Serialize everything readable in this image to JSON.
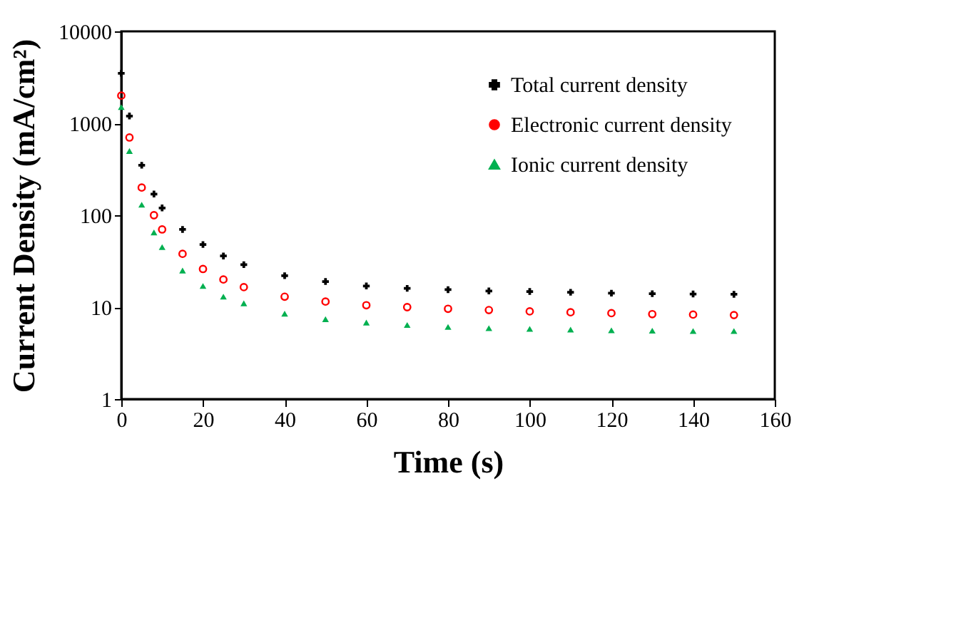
{
  "chart_data": {
    "type": "scatter",
    "xlabel": "Time (s)",
    "ylabel": "Current Density (mA/cm²)",
    "x": [
      0,
      2,
      5,
      8,
      10,
      15,
      20,
      25,
      30,
      40,
      50,
      60,
      70,
      80,
      90,
      100,
      110,
      120,
      130,
      140,
      150
    ],
    "series": [
      {
        "name": "Total current density",
        "color": "#000000",
        "marker": "cross",
        "values": [
          3500,
          1200,
          350,
          170,
          120,
          70,
          48,
          36,
          29,
          22,
          19,
          17,
          16,
          15.5,
          15,
          14.8,
          14.5,
          14.2,
          14,
          13.9,
          13.8
        ]
      },
      {
        "name": "Electronic current density",
        "color": "#ff0000",
        "marker": "circle",
        "values": [
          2000,
          700,
          200,
          100,
          70,
          38,
          26,
          20,
          16.5,
          13,
          11.5,
          10.5,
          10,
          9.6,
          9.3,
          9,
          8.8,
          8.6,
          8.4,
          8.3,
          8.2
        ]
      },
      {
        "name": "Ionic current density",
        "color": "#00b050",
        "marker": "triangle",
        "values": [
          1500,
          500,
          130,
          65,
          45,
          25,
          17,
          13,
          11,
          8.5,
          7.4,
          6.8,
          6.4,
          6.1,
          5.9,
          5.8,
          5.7,
          5.6,
          5.55,
          5.5,
          5.5
        ]
      }
    ],
    "xlim": [
      0,
      160
    ],
    "xticks": [
      0,
      20,
      40,
      60,
      80,
      100,
      120,
      140,
      160
    ],
    "ylim": [
      1,
      10000
    ],
    "yticks": [
      1,
      10,
      100,
      1000,
      10000
    ],
    "log": "y",
    "grid": false,
    "legend": "top right"
  }
}
